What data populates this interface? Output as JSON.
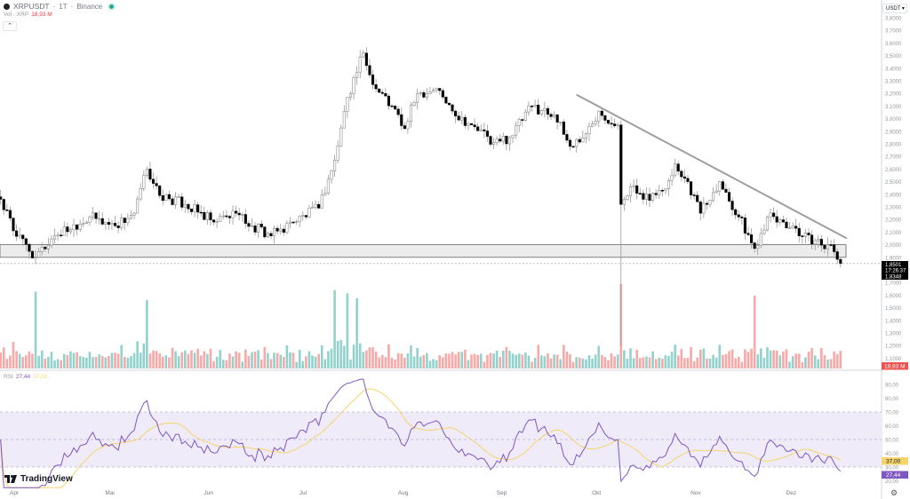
{
  "header": {
    "symbol": "XRPUSDT",
    "interval": "1T",
    "exchange": "Binance",
    "separator": "·",
    "volume_label": "Vol · XRP",
    "volume_value": "18,93 M",
    "collapse_icon": "chevron-up-icon"
  },
  "currency_selector": {
    "value": "USDT",
    "icon": "chevron-down-icon"
  },
  "rsi_legend": {
    "label": "RSI",
    "rsi_value": "27,44",
    "ma_value": "37,00"
  },
  "branding": {
    "name": "TradingView"
  },
  "colors": {
    "up_body": "#ffffff",
    "down_body": "#000000",
    "wick": "#9a9a9a",
    "vol_up": "#92d2cc",
    "vol_down": "#f7a9a7",
    "rsi_line": "#7e57c2",
    "rsi_ma": "#f5d46b",
    "rsi_band": "#efebf8",
    "zone": "#ececec",
    "trendline": "#9e9e9e",
    "last_price_bg": "#000000",
    "vol_badge": "#ef5350"
  },
  "chart_data": {
    "type": "candlestick",
    "title": "XRPUSDT · 1T · Binance",
    "price_axis": {
      "ticks": [
        "3,8000",
        "3,7000",
        "3,6000",
        "3,5000",
        "3,4000",
        "3,3000",
        "3,2000",
        "3,1000",
        "3,0000",
        "2,9000",
        "2,8000",
        "2,7000",
        "2,6000",
        "2,5000",
        "2,4000",
        "2,3000",
        "2,2000",
        "2,1000",
        "2,0000",
        "1,9000",
        "1,7000",
        "1,6000",
        "1,5000",
        "1,4000",
        "1,3000",
        "1,2000",
        "1,1000"
      ],
      "range": [
        1.05,
        3.8
      ]
    },
    "rsi_axis": {
      "ticks": [
        "90,00",
        "80,00",
        "70,00",
        "60,00",
        "50,00",
        "40,00",
        "30,00",
        "20,00"
      ],
      "bands": [
        30,
        50,
        70
      ]
    },
    "x_labels": [
      {
        "label": "Apr",
        "day": 0
      },
      {
        "label": "Mai",
        "day": 30
      },
      {
        "label": "Jun",
        "day": 61
      },
      {
        "label": "Jul",
        "day": 91
      },
      {
        "label": "Aug",
        "day": 122
      },
      {
        "label": "Sep",
        "day": 153
      },
      {
        "label": "Okt",
        "day": 183
      },
      {
        "label": "Nov",
        "day": 214
      },
      {
        "label": "Dez",
        "day": 244
      }
    ],
    "close_anchors_day_price": [
      [
        -4,
        2.36
      ],
      [
        0,
        2.11
      ],
      [
        7,
        1.9
      ],
      [
        13,
        2.07
      ],
      [
        24,
        2.22
      ],
      [
        32,
        2.15
      ],
      [
        38,
        2.25
      ],
      [
        42,
        2.6
      ],
      [
        46,
        2.39
      ],
      [
        54,
        2.32
      ],
      [
        63,
        2.18
      ],
      [
        70,
        2.25
      ],
      [
        75,
        2.15
      ],
      [
        81,
        2.07
      ],
      [
        88,
        2.18
      ],
      [
        96,
        2.29
      ],
      [
        101,
        2.67
      ],
      [
        105,
        3.17
      ],
      [
        110,
        3.52
      ],
      [
        113,
        3.27
      ],
      [
        119,
        3.1
      ],
      [
        123,
        2.92
      ],
      [
        127,
        3.2
      ],
      [
        133,
        3.24
      ],
      [
        138,
        3.06
      ],
      [
        144,
        2.95
      ],
      [
        151,
        2.81
      ],
      [
        156,
        2.85
      ],
      [
        163,
        3.1
      ],
      [
        170,
        3.03
      ],
      [
        175,
        2.78
      ],
      [
        180,
        2.88
      ],
      [
        184,
        3.06
      ],
      [
        190,
        2.95
      ],
      [
        191,
        2.32
      ],
      [
        194,
        2.46
      ],
      [
        198,
        2.36
      ],
      [
        204,
        2.43
      ],
      [
        208,
        2.64
      ],
      [
        212,
        2.5
      ],
      [
        216,
        2.25
      ],
      [
        222,
        2.5
      ],
      [
        228,
        2.22
      ],
      [
        233,
        1.97
      ],
      [
        237,
        2.22
      ],
      [
        242,
        2.18
      ],
      [
        247,
        2.07
      ],
      [
        256,
        2.0
      ],
      [
        260,
        1.85
      ]
    ],
    "crash_wick": {
      "day": 191,
      "low": 1.2
    },
    "volume_spikes_day": [
      7,
      42,
      101,
      105,
      108,
      191,
      233
    ],
    "support_zone": [
      1.9,
      2.0
    ],
    "trendline": {
      "from": [
        177,
        3.19
      ],
      "to": [
        262,
        2.05
      ]
    },
    "last_price": "1,8501",
    "countdown": "17:26:37",
    "prev_close": "1,8348",
    "last_price_value": 1.8501,
    "volume_badge": "18,93 M",
    "rsi_value_badge": "27,44",
    "rsi_ma_badge": "37,00"
  }
}
